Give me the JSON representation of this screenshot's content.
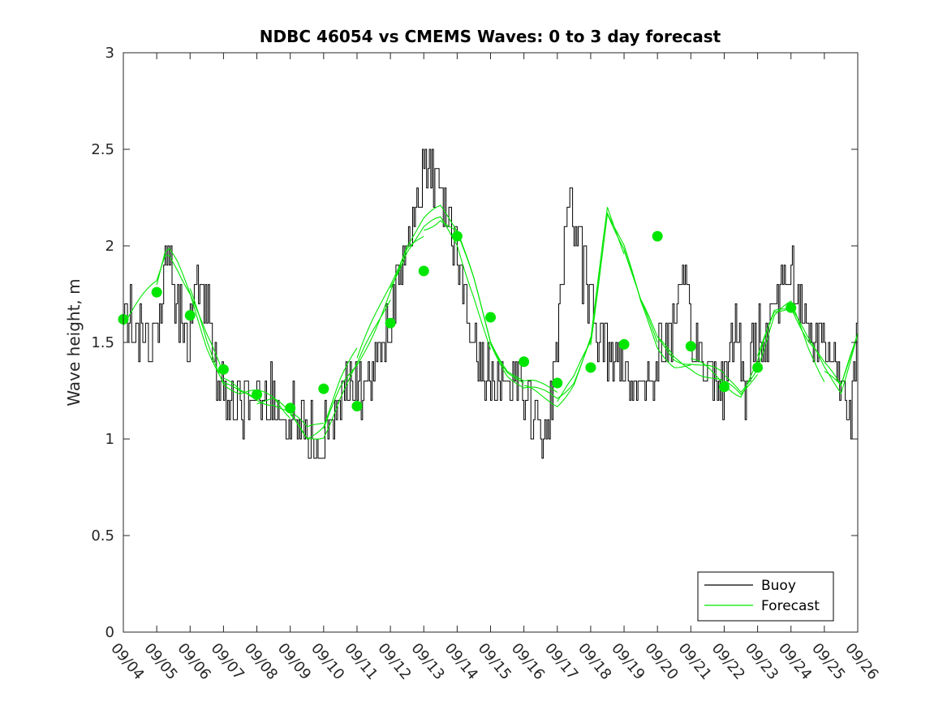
{
  "chart_data": {
    "type": "line",
    "title": "NDBC 46054 vs CMEMS Waves: 0 to 3 day forecast",
    "xlabel": "",
    "ylabel": "Wave height, m",
    "xlim": [
      0,
      22
    ],
    "ylim": [
      0,
      3
    ],
    "x_unit": "days since 09/04",
    "x_ticks": [
      "09/04",
      "09/05",
      "09/06",
      "09/07",
      "09/08",
      "09/09",
      "09/10",
      "09/11",
      "09/12",
      "09/13",
      "09/14",
      "09/15",
      "09/16",
      "09/17",
      "09/18",
      "09/19",
      "09/20",
      "09/21",
      "09/22",
      "09/23",
      "09/24",
      "09/25",
      "09/26"
    ],
    "y_ticks": [
      "0",
      "0.5",
      "1",
      "1.5",
      "2",
      "2.5",
      "3"
    ],
    "legend": {
      "position": "bottom-right",
      "entries": [
        {
          "label": "Buoy",
          "color": "#000000"
        },
        {
          "label": "Forecast",
          "color": "#00e600"
        }
      ]
    },
    "buoy_control_points": {
      "x": [
        0,
        0.2,
        0.5,
        0.8,
        1.0,
        1.3,
        1.6,
        1.9,
        2.2,
        2.5,
        2.8,
        3.0,
        3.3,
        3.6,
        3.9,
        4.2,
        4.5,
        4.8,
        5.0,
        5.3,
        5.6,
        5.9,
        6.2,
        6.5,
        6.8,
        7.0,
        7.3,
        7.6,
        7.9,
        8.2,
        8.5,
        8.8,
        9.1,
        9.4,
        9.7,
        10.0,
        10.3,
        10.6,
        10.9,
        11.2,
        11.5,
        11.8,
        12.1,
        12.4,
        12.7,
        13.0,
        13.3,
        13.6,
        13.9,
        14.2,
        14.4,
        14.6,
        14.8,
        15.0,
        15.3,
        15.6,
        15.9,
        16.2,
        16.5,
        16.8,
        17.1,
        17.4,
        17.7,
        18.0,
        18.3,
        18.6,
        18.9,
        19.2,
        19.5,
        19.8,
        20.0,
        20.2,
        20.4,
        20.6,
        20.9,
        21.2,
        21.5,
        21.8,
        22.0
      ],
      "y": [
        1.6,
        1.65,
        1.55,
        1.45,
        1.55,
        2.0,
        1.7,
        1.5,
        1.8,
        1.65,
        1.3,
        1.2,
        1.2,
        1.15,
        1.25,
        1.2,
        1.25,
        1.05,
        1.15,
        1.05,
        1.0,
        0.95,
        1.15,
        1.2,
        1.3,
        1.25,
        1.3,
        1.45,
        1.6,
        1.75,
        2.0,
        2.3,
        2.4,
        2.35,
        2.2,
        1.95,
        1.6,
        1.4,
        1.35,
        1.3,
        1.3,
        1.35,
        1.2,
        1.05,
        0.95,
        1.5,
        2.3,
        2.0,
        1.8,
        1.6,
        1.5,
        1.45,
        1.4,
        1.35,
        1.3,
        1.25,
        1.35,
        1.5,
        1.6,
        1.75,
        1.5,
        1.35,
        1.3,
        1.3,
        1.6,
        1.25,
        1.5,
        1.55,
        1.7,
        1.85,
        1.9,
        1.75,
        1.6,
        1.55,
        1.5,
        1.45,
        1.3,
        1.2,
        1.6
      ]
    },
    "forecast_control_points": {
      "x": [
        0,
        0.5,
        1.0,
        1.3,
        1.6,
        2.0,
        2.5,
        3.0,
        3.5,
        4.0,
        4.5,
        5.0,
        5.5,
        6.0,
        6.5,
        7.0,
        7.5,
        8.0,
        8.5,
        9.0,
        9.5,
        10.0,
        10.5,
        11.0,
        11.5,
        12.0,
        12.5,
        13.0,
        13.5,
        14.0,
        14.5,
        15.0,
        15.5,
        16.0,
        16.5,
        17.0,
        17.5,
        18.0,
        18.5,
        19.0,
        19.5,
        20.0,
        20.5,
        21.0,
        21.5,
        22.0
      ],
      "y": [
        1.6,
        1.7,
        1.8,
        1.98,
        1.9,
        1.75,
        1.5,
        1.3,
        1.22,
        1.2,
        1.18,
        1.1,
        1.0,
        1.05,
        1.25,
        1.4,
        1.6,
        1.8,
        2.0,
        2.1,
        2.15,
        2.05,
        1.8,
        1.5,
        1.35,
        1.25,
        1.22,
        1.2,
        1.3,
        1.5,
        2.2,
        2.0,
        1.7,
        1.5,
        1.42,
        1.4,
        1.35,
        1.3,
        1.25,
        1.4,
        1.65,
        1.7,
        1.5,
        1.35,
        1.25,
        1.55
      ]
    },
    "forecast_daily_points": {
      "x": [
        0,
        1,
        2,
        3,
        4,
        5,
        6,
        7,
        8,
        9,
        10,
        11,
        12,
        13,
        14,
        15,
        16,
        17,
        18,
        19,
        20
      ],
      "y": [
        1.62,
        1.76,
        1.64,
        1.36,
        1.23,
        1.16,
        1.26,
        1.17,
        1.6,
        1.87,
        2.05,
        1.63,
        1.4,
        1.29,
        1.37,
        1.49,
        2.05,
        1.48,
        1.27,
        1.37,
        1.68
      ]
    }
  }
}
